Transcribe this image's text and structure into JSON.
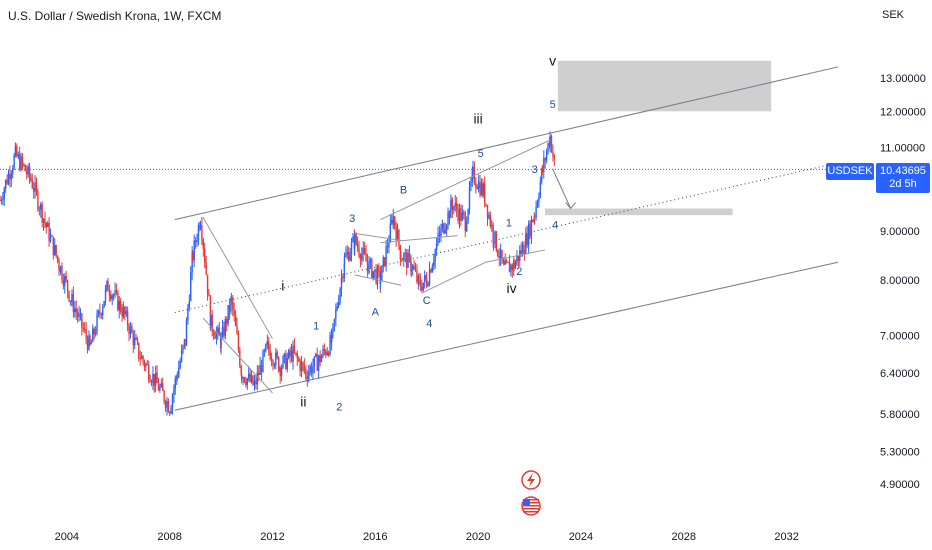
{
  "header": {
    "title": "U.S. Dollar / Swedish Krona, 1W, FXCM",
    "currency": "SEK"
  },
  "price_tag": {
    "symbol": "USDSEK",
    "last": "10.43695",
    "countdown": "2d 5h"
  },
  "colors": {
    "up": "#2962ff",
    "down": "#e53935",
    "accent": "#2962ff",
    "channel": "#787b86",
    "zone": "#cccccc",
    "wave_label": "#1e4f8f"
  },
  "chart_data": {
    "type": "candlestick",
    "title": "U.S. Dollar / Swedish Krona, 1W, FXCM",
    "ylabel": "SEK",
    "scale": "log",
    "xlim": [
      2001.4,
      2034.0
    ],
    "ylim": [
      4.7,
      14.5
    ],
    "x_ticks": [
      "2004",
      "2008",
      "2012",
      "2016",
      "2020",
      "2024",
      "2028",
      "2032"
    ],
    "y_ticks": [
      "13.00000",
      "12.00000",
      "11.00000",
      "10.43695",
      "9.00000",
      "8.00000",
      "7.00000",
      "6.40000",
      "5.80000",
      "5.30000",
      "4.90000"
    ],
    "series": [
      {
        "x": [
          2001.4,
          2002.0,
          2002.6,
          2003.2,
          2003.7,
          2004.2,
          2004.9,
          2005.6,
          2006.2,
          2006.8,
          2007.4,
          2008.0,
          2008.3,
          2008.6,
          2008.9,
          2009.2,
          2009.6,
          2010.0,
          2010.4,
          2010.8,
          2011.3,
          2011.8,
          2012.3,
          2012.8,
          2013.3,
          2013.8,
          2014.3,
          2014.8,
          2015.2,
          2015.7,
          2016.2,
          2016.7,
          2017.0,
          2017.4,
          2017.7,
          2018.0,
          2018.5,
          2019.0,
          2019.5,
          2019.8,
          2020.2,
          2020.6,
          2021.0,
          2021.4,
          2021.8,
          2022.2,
          2022.5,
          2022.8,
          2023.0
        ],
        "values": [
          9.7,
          10.8,
          10.2,
          9.1,
          8.3,
          7.6,
          6.8,
          7.9,
          7.4,
          6.7,
          6.3,
          5.9,
          6.4,
          6.9,
          8.5,
          9.3,
          7.2,
          6.9,
          7.6,
          6.4,
          6.2,
          6.8,
          6.5,
          6.7,
          6.4,
          6.6,
          6.9,
          8.4,
          8.8,
          8.3,
          8.0,
          9.3,
          8.5,
          8.3,
          7.9,
          8.0,
          8.9,
          9.6,
          9.2,
          10.3,
          9.9,
          8.9,
          8.2,
          8.3,
          8.7,
          9.4,
          10.4,
          11.3,
          10.44
        ]
      }
    ],
    "wave_labels": [
      {
        "text": "v",
        "x": 2022.9,
        "y": 13.4
      },
      {
        "text": "5",
        "x": 2022.9,
        "y": 12.1
      },
      {
        "text": "iii",
        "x": 2020.0,
        "y": 11.65
      },
      {
        "text": "5",
        "x": 2020.1,
        "y": 10.75
      },
      {
        "text": "3",
        "x": 2022.2,
        "y": 10.35
      },
      {
        "text": "B",
        "x": 2017.1,
        "y": 9.85
      },
      {
        "text": "3",
        "x": 2015.1,
        "y": 9.2
      },
      {
        "text": "1",
        "x": 2021.2,
        "y": 9.1
      },
      {
        "text": "4",
        "x": 2023.0,
        "y": 9.05
      },
      {
        "text": "2",
        "x": 2021.6,
        "y": 8.1
      },
      {
        "text": "iv",
        "x": 2021.3,
        "y": 7.75
      },
      {
        "text": "A",
        "x": 2016.0,
        "y": 7.35
      },
      {
        "text": "C",
        "x": 2018.0,
        "y": 7.55
      },
      {
        "text": "4",
        "x": 2018.1,
        "y": 7.15
      },
      {
        "text": "i",
        "x": 2012.4,
        "y": 7.8
      },
      {
        "text": "1",
        "x": 2013.7,
        "y": 7.1
      },
      {
        "text": "ii",
        "x": 2013.2,
        "y": 5.9
      },
      {
        "text": "2",
        "x": 2014.6,
        "y": 5.85
      }
    ],
    "channel_lines": [
      {
        "style": "solid",
        "x": [
          2008.2,
          2034.0
        ],
        "y": [
          9.25,
          13.35
        ]
      },
      {
        "style": "solid",
        "x": [
          2008.2,
          2034.0
        ],
        "y": [
          5.85,
          8.35
        ]
      },
      {
        "style": "dotted",
        "x": [
          2008.2,
          2034.0
        ],
        "y": [
          7.4,
          10.6
        ]
      }
    ],
    "wave_lines": [
      {
        "x": [
          2009.3,
          2012.0
        ],
        "y": [
          9.3,
          6.95
        ]
      },
      {
        "x": [
          2009.3,
          2012.0
        ],
        "y": [
          7.3,
          6.1
        ]
      },
      {
        "x": [
          2016.2,
          2022.8
        ],
        "y": [
          9.25,
          11.2
        ]
      },
      {
        "x": [
          2016.2,
          2019.2
        ],
        "y": [
          8.75,
          8.9
        ]
      },
      {
        "x": [
          2015.2,
          2017.0
        ],
        "y": [
          8.1,
          7.9
        ]
      },
      {
        "x": [
          2015.2,
          2017.0
        ],
        "y": [
          8.95,
          8.8
        ]
      },
      {
        "x": [
          2017.8,
          2020.3
        ],
        "y": [
          7.75,
          8.35
        ]
      },
      {
        "x": [
          2020.3,
          2022.6
        ],
        "y": [
          8.35,
          8.6
        ]
      }
    ],
    "target_zones": [
      {
        "x": [
          2023.1,
          2031.4
        ],
        "y": [
          12.0,
          13.55
        ]
      },
      {
        "x": [
          2022.6,
          2029.9
        ],
        "y": [
          9.35,
          9.5
        ]
      }
    ],
    "projection_arrow": {
      "x": [
        2022.9,
        2023.6
      ],
      "y": [
        10.45,
        9.5
      ]
    },
    "last_price": 10.43695
  }
}
